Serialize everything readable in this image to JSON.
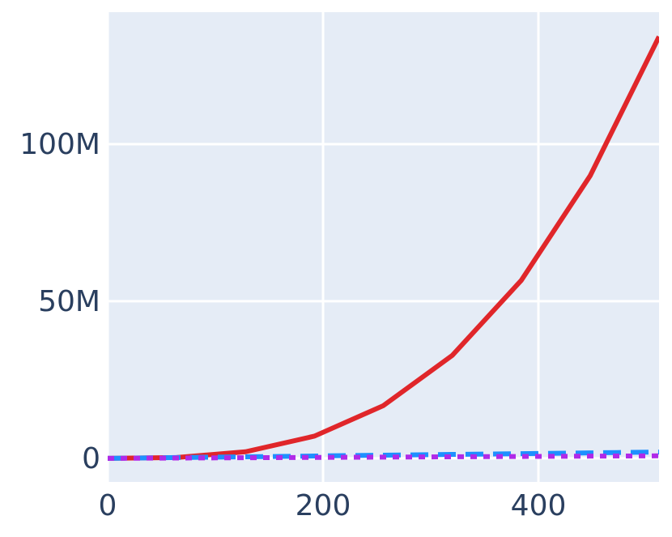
{
  "chart_data": {
    "type": "line",
    "x": [
      0,
      64,
      128,
      192,
      256,
      320,
      384,
      448,
      512
    ],
    "series": [
      {
        "color": "#e0262a",
        "dash": "solid",
        "values": [
          0,
          262144,
          2097152,
          7077888,
          16777216,
          32768000,
          56623104,
          89915392,
          134217728
        ]
      },
      {
        "color": "#1e90ff",
        "dash": "dash",
        "values": [
          0,
          250000,
          500000,
          750000,
          1000000,
          1250000,
          1500000,
          1750000,
          2000000
        ]
      },
      {
        "color": "#b02ae8",
        "dash": "dot",
        "values": [
          0,
          100000,
          200000,
          300000,
          400000,
          500000,
          600000,
          700000,
          800000
        ]
      }
    ],
    "xlim": [
      0,
      512
    ],
    "ylim": [
      -7500000,
      142000000
    ],
    "xticks": [
      0,
      200,
      400
    ],
    "yticks": [
      0,
      {
        "value": 50000000,
        "label": "50M"
      },
      {
        "value": 100000000,
        "label": "100M"
      }
    ],
    "grid": true
  }
}
